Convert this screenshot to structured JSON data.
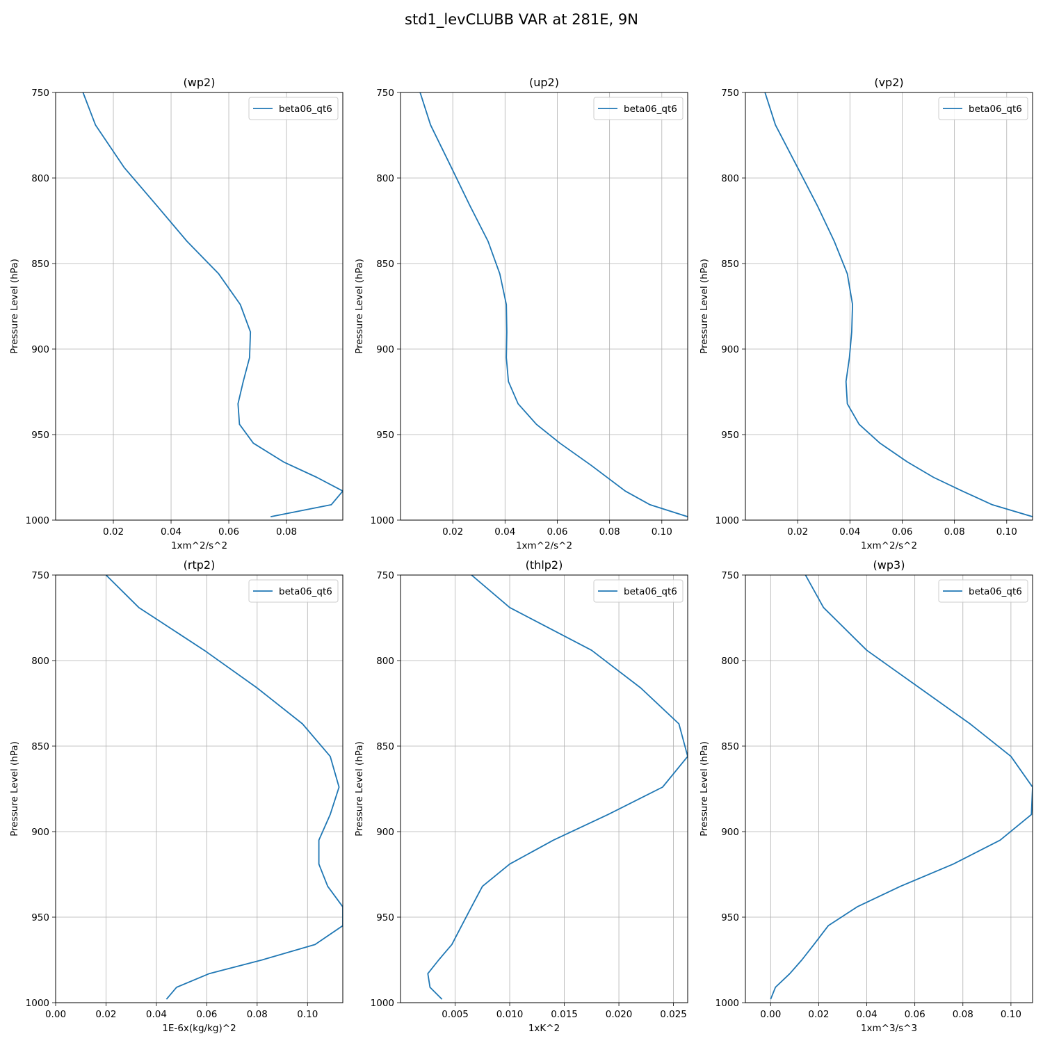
{
  "figure": {
    "title": "std1_levCLUBB VAR at 281E, 9N"
  },
  "colors": {
    "series": "#1f77b4",
    "grid": "#b0b0b0",
    "axis": "#000000",
    "legend_border": "#cccccc"
  },
  "chart_data": [
    {
      "type": "line",
      "title": "(wp2)",
      "xlabel": "1xm^2/s^2",
      "ylabel": "Pressure Level (hPa)",
      "xlim": [
        0.0,
        0.0995
      ],
      "ylim": [
        1000,
        750
      ],
      "xticks": [
        "0.02",
        "0.04",
        "0.06",
        "0.08"
      ],
      "yticks": [
        "750",
        "800",
        "850",
        "900",
        "950",
        "1000"
      ],
      "grid": true,
      "legend": "top-right",
      "series": [
        {
          "name": "beta06_qt6",
          "values": [
            {
              "x": 0.0095,
              "y": 750
            },
            {
              "x": 0.0138,
              "y": 769
            },
            {
              "x": 0.0238,
              "y": 794
            },
            {
              "x": 0.035,
              "y": 816
            },
            {
              "x": 0.0455,
              "y": 837
            },
            {
              "x": 0.0565,
              "y": 856
            },
            {
              "x": 0.064,
              "y": 874
            },
            {
              "x": 0.0675,
              "y": 890
            },
            {
              "x": 0.0672,
              "y": 905
            },
            {
              "x": 0.065,
              "y": 919
            },
            {
              "x": 0.0632,
              "y": 932
            },
            {
              "x": 0.0637,
              "y": 944
            },
            {
              "x": 0.0685,
              "y": 955
            },
            {
              "x": 0.079,
              "y": 966
            },
            {
              "x": 0.0905,
              "y": 975
            },
            {
              "x": 0.0995,
              "y": 983
            },
            {
              "x": 0.0955,
              "y": 991
            },
            {
              "x": 0.0745,
              "y": 998
            }
          ]
        }
      ]
    },
    {
      "type": "line",
      "title": "(up2)",
      "xlabel": "1xm^2/s^2",
      "ylabel": "Pressure Level (hPa)",
      "xlim": [
        0.0,
        0.1099
      ],
      "ylim": [
        1000,
        750
      ],
      "xticks": [
        "0.02",
        "0.04",
        "0.06",
        "0.08",
        "0.10"
      ],
      "yticks": [
        "750",
        "800",
        "850",
        "900",
        "950",
        "1000"
      ],
      "grid": true,
      "legend": "top-right",
      "series": [
        {
          "name": "beta06_qt6",
          "values": [
            {
              "x": 0.0075,
              "y": 750
            },
            {
              "x": 0.0115,
              "y": 769
            },
            {
              "x": 0.0195,
              "y": 794
            },
            {
              "x": 0.0265,
              "y": 816
            },
            {
              "x": 0.0335,
              "y": 837
            },
            {
              "x": 0.038,
              "y": 856
            },
            {
              "x": 0.0405,
              "y": 874
            },
            {
              "x": 0.0407,
              "y": 890
            },
            {
              "x": 0.0405,
              "y": 905
            },
            {
              "x": 0.0413,
              "y": 919
            },
            {
              "x": 0.045,
              "y": 932
            },
            {
              "x": 0.052,
              "y": 944
            },
            {
              "x": 0.061,
              "y": 955
            },
            {
              "x": 0.073,
              "y": 968
            },
            {
              "x": 0.086,
              "y": 983
            },
            {
              "x": 0.0955,
              "y": 991
            },
            {
              "x": 0.1099,
              "y": 998
            }
          ]
        }
      ]
    },
    {
      "type": "line",
      "title": "(vp2)",
      "xlabel": "1xm^2/s^2",
      "ylabel": "Pressure Level (hPa)",
      "xlim": [
        0.0,
        0.1099
      ],
      "ylim": [
        1000,
        750
      ],
      "xticks": [
        "0.02",
        "0.04",
        "0.06",
        "0.08",
        "0.10"
      ],
      "yticks": [
        "750",
        "800",
        "850",
        "900",
        "950",
        "1000"
      ],
      "grid": true,
      "legend": "top-right",
      "series": [
        {
          "name": "beta06_qt6",
          "values": [
            {
              "x": 0.0075,
              "y": 750
            },
            {
              "x": 0.0115,
              "y": 769
            },
            {
              "x": 0.02,
              "y": 794
            },
            {
              "x": 0.0275,
              "y": 816
            },
            {
              "x": 0.034,
              "y": 837
            },
            {
              "x": 0.039,
              "y": 856
            },
            {
              "x": 0.041,
              "y": 874
            },
            {
              "x": 0.0407,
              "y": 890
            },
            {
              "x": 0.0398,
              "y": 905
            },
            {
              "x": 0.0385,
              "y": 919
            },
            {
              "x": 0.039,
              "y": 932
            },
            {
              "x": 0.0435,
              "y": 944
            },
            {
              "x": 0.0515,
              "y": 955
            },
            {
              "x": 0.062,
              "y": 966
            },
            {
              "x": 0.072,
              "y": 975
            },
            {
              "x": 0.083,
              "y": 983
            },
            {
              "x": 0.0945,
              "y": 991
            },
            {
              "x": 0.1099,
              "y": 998
            }
          ]
        }
      ]
    },
    {
      "type": "line",
      "title": "(rtp2)",
      "xlabel": "1E-6x(kg/kg)^2",
      "ylabel": "Pressure Level (hPa)",
      "xlim": [
        0.0,
        0.114
      ],
      "ylim": [
        1000,
        750
      ],
      "xticks": [
        "0.00",
        "0.02",
        "0.04",
        "0.06",
        "0.08",
        "0.10"
      ],
      "yticks": [
        "750",
        "800",
        "850",
        "900",
        "950",
        "1000"
      ],
      "grid": true,
      "legend": "top-right",
      "series": [
        {
          "name": "beta06_qt6",
          "values": [
            {
              "x": 0.02,
              "y": 750
            },
            {
              "x": 0.033,
              "y": 769
            },
            {
              "x": 0.059,
              "y": 794
            },
            {
              "x": 0.08,
              "y": 816
            },
            {
              "x": 0.098,
              "y": 837
            },
            {
              "x": 0.109,
              "y": 856
            },
            {
              "x": 0.1125,
              "y": 874
            },
            {
              "x": 0.109,
              "y": 890
            },
            {
              "x": 0.1045,
              "y": 905
            },
            {
              "x": 0.1045,
              "y": 919
            },
            {
              "x": 0.108,
              "y": 932
            },
            {
              "x": 0.114,
              "y": 944
            },
            {
              "x": 0.114,
              "y": 955
            },
            {
              "x": 0.103,
              "y": 966
            },
            {
              "x": 0.082,
              "y": 975
            },
            {
              "x": 0.061,
              "y": 983
            },
            {
              "x": 0.048,
              "y": 991
            },
            {
              "x": 0.044,
              "y": 998
            }
          ]
        }
      ]
    },
    {
      "type": "line",
      "title": "(thlp2)",
      "xlabel": "1xK^2",
      "ylabel": "Pressure Level (hPa)",
      "xlim": [
        0.0,
        0.0263
      ],
      "ylim": [
        1000,
        750
      ],
      "xticks": [
        "0.005",
        "0.010",
        "0.015",
        "0.020",
        "0.025"
      ],
      "yticks": [
        "750",
        "800",
        "850",
        "900",
        "950",
        "1000"
      ],
      "grid": true,
      "legend": "top-right",
      "series": [
        {
          "name": "beta06_qt6",
          "values": [
            {
              "x": 0.0065,
              "y": 750
            },
            {
              "x": 0.01,
              "y": 769
            },
            {
              "x": 0.0175,
              "y": 794
            },
            {
              "x": 0.022,
              "y": 816
            },
            {
              "x": 0.0255,
              "y": 837
            },
            {
              "x": 0.0263,
              "y": 856
            },
            {
              "x": 0.024,
              "y": 874
            },
            {
              "x": 0.019,
              "y": 890
            },
            {
              "x": 0.014,
              "y": 905
            },
            {
              "x": 0.01,
              "y": 919
            },
            {
              "x": 0.0075,
              "y": 932
            },
            {
              "x": 0.0065,
              "y": 944
            },
            {
              "x": 0.0056,
              "y": 955
            },
            {
              "x": 0.0047,
              "y": 966
            },
            {
              "x": 0.0035,
              "y": 975
            },
            {
              "x": 0.0025,
              "y": 983
            },
            {
              "x": 0.0027,
              "y": 991
            },
            {
              "x": 0.0038,
              "y": 998
            }
          ]
        }
      ]
    },
    {
      "type": "line",
      "title": "(wp3)",
      "xlabel": "1xm^3/s^3",
      "ylabel": "Pressure Level (hPa)",
      "xlim": [
        -0.0105,
        0.109
      ],
      "ylim": [
        1000,
        750
      ],
      "xticks": [
        "0.00",
        "0.02",
        "0.04",
        "0.06",
        "0.08",
        "0.10"
      ],
      "yticks": [
        "750",
        "800",
        "850",
        "900",
        "950",
        "1000"
      ],
      "grid": true,
      "legend": "top-right",
      "series": [
        {
          "name": "beta06_qt6",
          "values": [
            {
              "x": 0.0145,
              "y": 750
            },
            {
              "x": 0.022,
              "y": 769
            },
            {
              "x": 0.04,
              "y": 794
            },
            {
              "x": 0.062,
              "y": 816
            },
            {
              "x": 0.083,
              "y": 837
            },
            {
              "x": 0.1,
              "y": 856
            },
            {
              "x": 0.109,
              "y": 874
            },
            {
              "x": 0.1085,
              "y": 890
            },
            {
              "x": 0.0955,
              "y": 905
            },
            {
              "x": 0.076,
              "y": 919
            },
            {
              "x": 0.054,
              "y": 932
            },
            {
              "x": 0.036,
              "y": 944
            },
            {
              "x": 0.024,
              "y": 955
            },
            {
              "x": 0.018,
              "y": 966
            },
            {
              "x": 0.013,
              "y": 975
            },
            {
              "x": 0.008,
              "y": 983
            },
            {
              "x": 0.002,
              "y": 991
            },
            {
              "x": 0.0,
              "y": 998
            }
          ]
        }
      ]
    }
  ]
}
